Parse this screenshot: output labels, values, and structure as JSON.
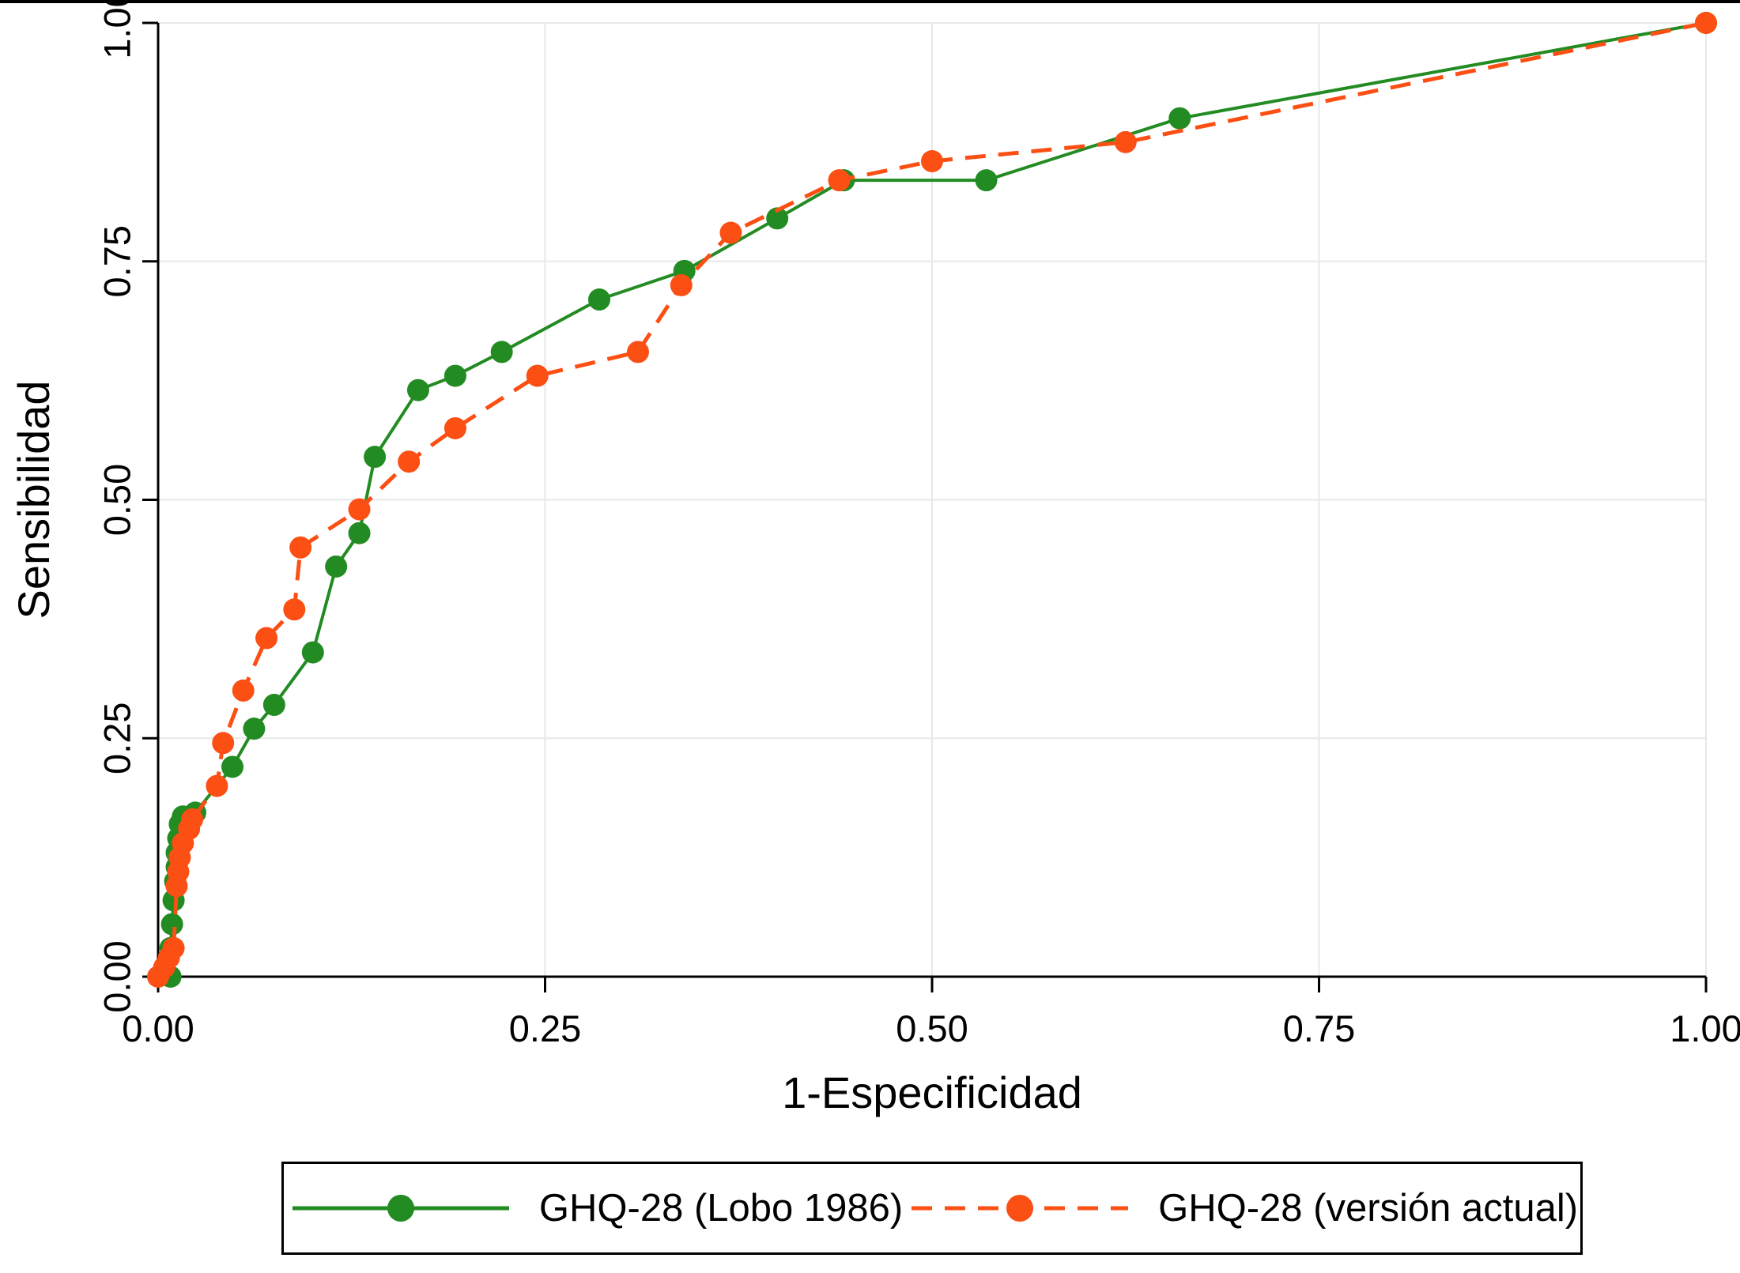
{
  "figure": {
    "background": "#ffffff",
    "border_color": "#000000"
  },
  "chart_data": {
    "type": "line",
    "title": "",
    "subtitle": "",
    "xlabel": "1-Especificidad",
    "ylabel": "Sensibilidad",
    "xlim": [
      0,
      1
    ],
    "ylim": [
      0,
      1
    ],
    "xticks": [
      0.0,
      0.25,
      0.5,
      0.75,
      1.0
    ],
    "yticks": [
      0.0,
      0.25,
      0.5,
      0.75,
      1.0
    ],
    "grid": true,
    "grid_color": "#e8e8e8",
    "axis_color": "#000000",
    "legend_position": "bottom-center-boxed",
    "series": [
      {
        "name": "GHQ-28 (Lobo 1986)",
        "color": "#228B22",
        "style": "solid",
        "marker": "circle",
        "points": [
          [
            0.008,
            0.0
          ],
          [
            0.008,
            0.03
          ],
          [
            0.009,
            0.055
          ],
          [
            0.01,
            0.08
          ],
          [
            0.011,
            0.1
          ],
          [
            0.012,
            0.115
          ],
          [
            0.012,
            0.13
          ],
          [
            0.013,
            0.145
          ],
          [
            0.014,
            0.16
          ],
          [
            0.016,
            0.168
          ],
          [
            0.024,
            0.172
          ],
          [
            0.048,
            0.22
          ],
          [
            0.062,
            0.26
          ],
          [
            0.075,
            0.285
          ],
          [
            0.1,
            0.34
          ],
          [
            0.115,
            0.43
          ],
          [
            0.13,
            0.465
          ],
          [
            0.14,
            0.545
          ],
          [
            0.168,
            0.615
          ],
          [
            0.192,
            0.63
          ],
          [
            0.222,
            0.655
          ],
          [
            0.285,
            0.71
          ],
          [
            0.34,
            0.74
          ],
          [
            0.4,
            0.795
          ],
          [
            0.443,
            0.835
          ],
          [
            0.535,
            0.835
          ],
          [
            0.66,
            0.9
          ],
          [
            1.0,
            1.0
          ]
        ]
      },
      {
        "name": "GHQ-28 (versión actual)",
        "color": "#fb4f14",
        "style": "dashed",
        "dash": "26 16",
        "marker": "circle",
        "points": [
          [
            0.0,
            0.0
          ],
          [
            0.004,
            0.01
          ],
          [
            0.007,
            0.02
          ],
          [
            0.01,
            0.03
          ],
          [
            0.012,
            0.095
          ],
          [
            0.013,
            0.11
          ],
          [
            0.014,
            0.125
          ],
          [
            0.016,
            0.14
          ],
          [
            0.02,
            0.155
          ],
          [
            0.022,
            0.165
          ],
          [
            0.038,
            0.2
          ],
          [
            0.042,
            0.245
          ],
          [
            0.055,
            0.3
          ],
          [
            0.07,
            0.355
          ],
          [
            0.088,
            0.385
          ],
          [
            0.092,
            0.45
          ],
          [
            0.13,
            0.49
          ],
          [
            0.162,
            0.54
          ],
          [
            0.192,
            0.575
          ],
          [
            0.245,
            0.63
          ],
          [
            0.31,
            0.655
          ],
          [
            0.338,
            0.725
          ],
          [
            0.37,
            0.78
          ],
          [
            0.44,
            0.835
          ],
          [
            0.5,
            0.855
          ],
          [
            0.625,
            0.875
          ],
          [
            1.0,
            1.0
          ]
        ]
      }
    ]
  }
}
